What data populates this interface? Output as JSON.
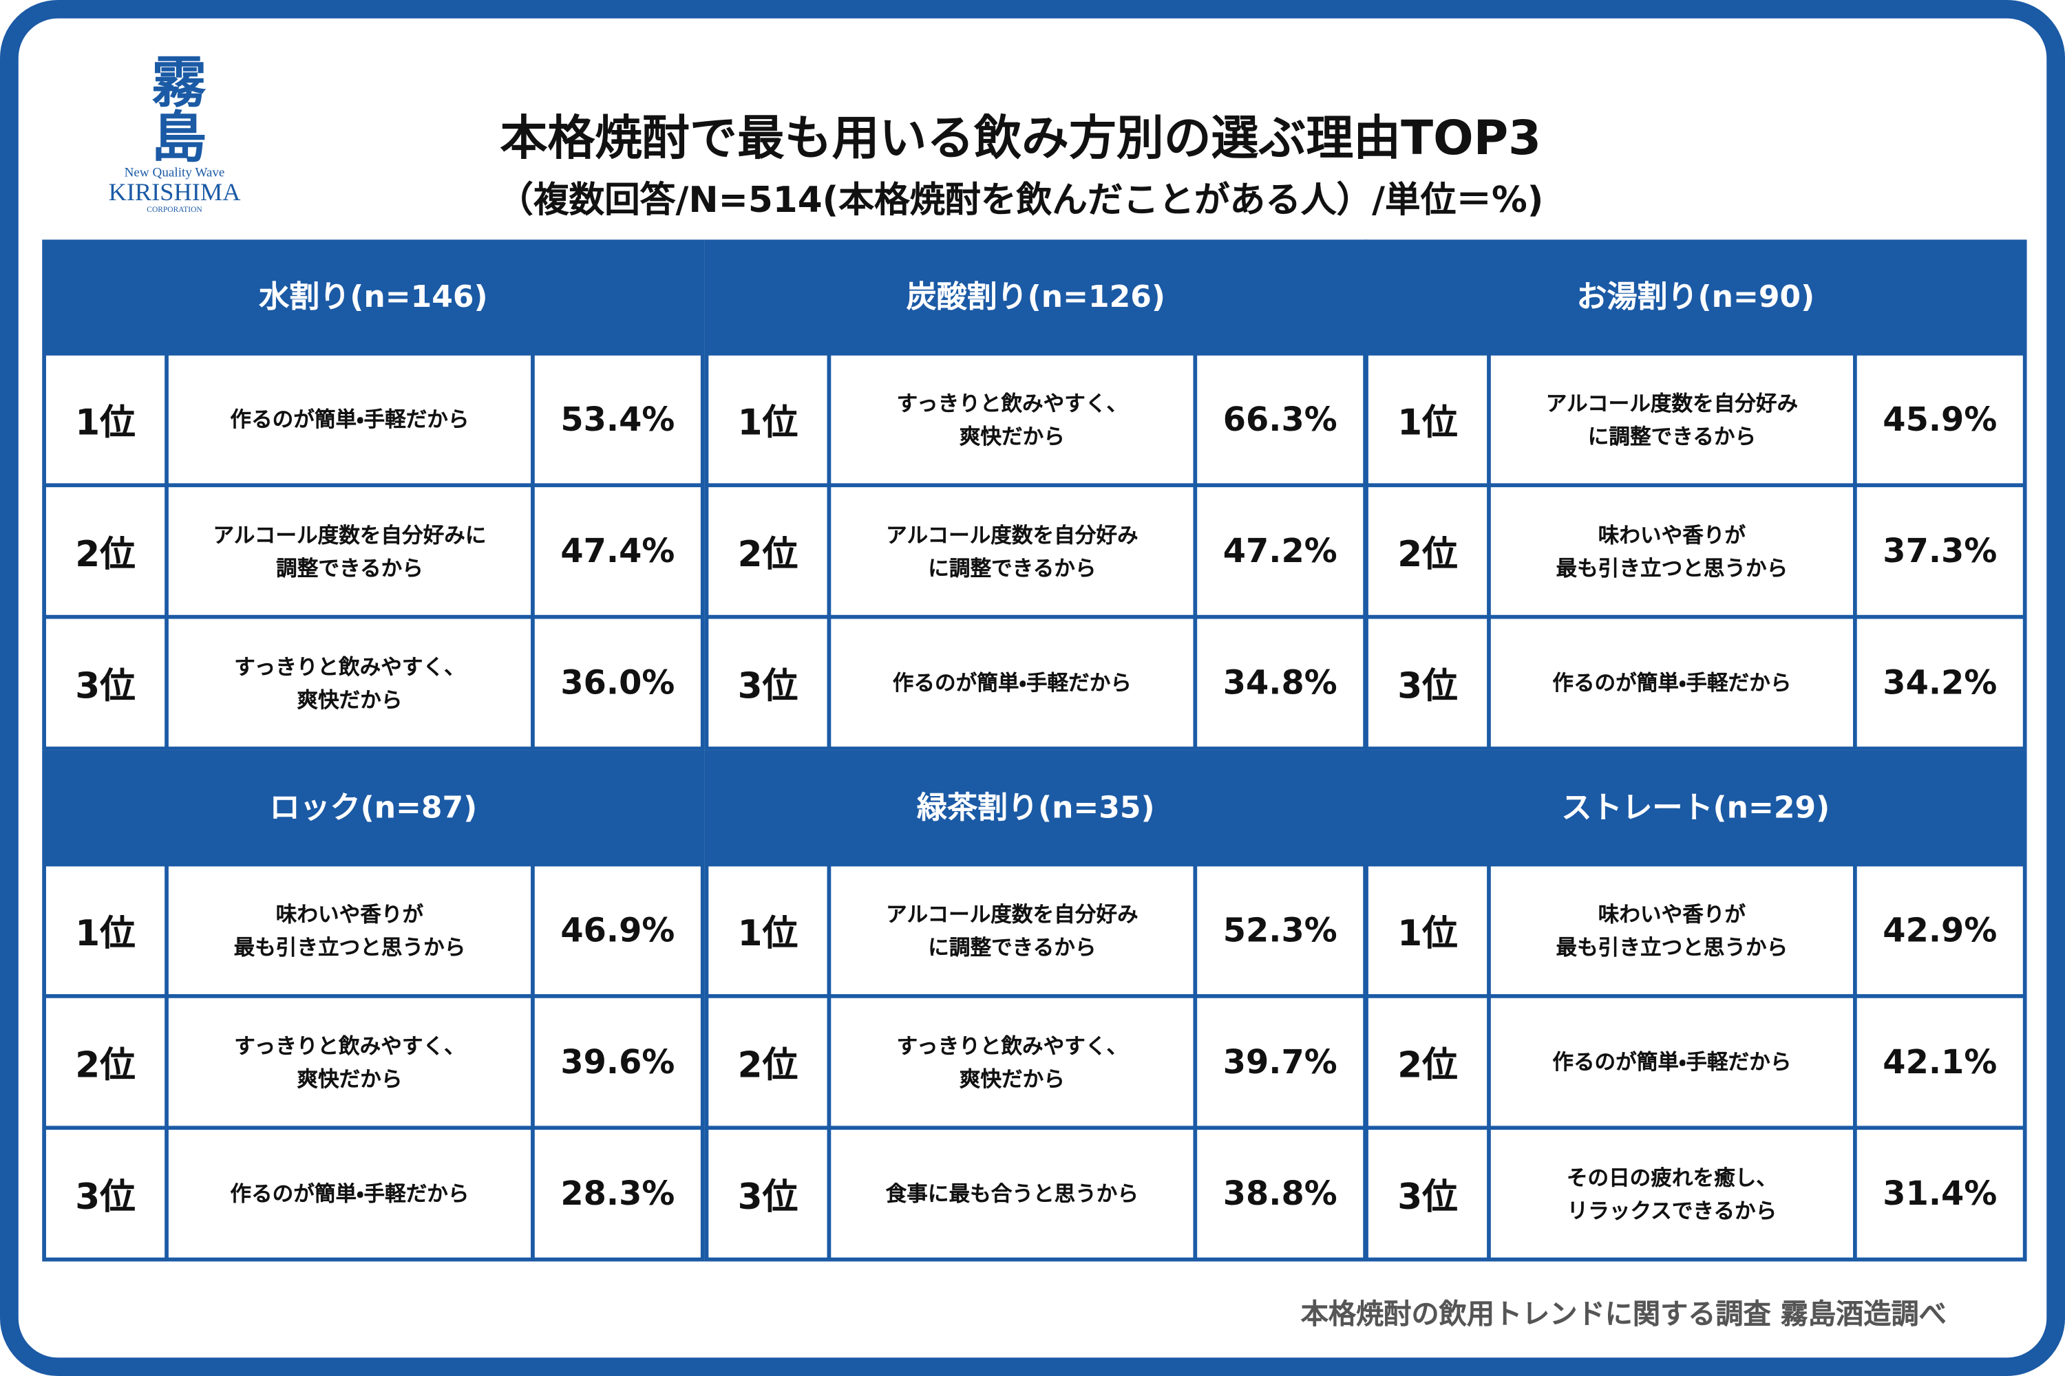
{
  "logo": {
    "mark": "霧島",
    "tagline": "New Quality Wave",
    "name": "KIRISHIMA",
    "corp": "CORPORATION"
  },
  "header": {
    "title": "本格焼酎で最も用いる飲み方別の選ぶ理由TOP3",
    "subtitle": "（複数回答/N=514(本格焼酎を飲んだことがある人）/単位＝%)"
  },
  "panels": [
    {
      "title": "水割り(n=146)",
      "rows": [
        [
          "1位",
          "作るのが簡単・手軽だから",
          "53.4%"
        ],
        [
          "2位",
          "アルコール度数を自分好みに\n調整できるから",
          "47.4%"
        ],
        [
          "3位",
          "すっきりと飲みやすく、\n爽快だから",
          "36.0%"
        ]
      ]
    },
    {
      "title": "炭酸割り(n=126)",
      "rows": [
        [
          "1位",
          "すっきりと飲みやすく、\n爽快だから",
          "66.3%"
        ],
        [
          "2位",
          "アルコール度数を自分好み\nに調整できるから",
          "47.2%"
        ],
        [
          "3位",
          "作るのが簡単・手軽だから",
          "34.8%"
        ]
      ]
    },
    {
      "title": "お湯割り(n=90)",
      "rows": [
        [
          "1位",
          "アルコール度数を自分好み\nに調整できるから",
          "45.9%"
        ],
        [
          "2位",
          "味わいや香りが\n最も引き立つと思うから",
          "37.3%"
        ],
        [
          "3位",
          "作るのが簡単・手軽だから",
          "34.2%"
        ]
      ]
    },
    {
      "title": "ロック(n=87)",
      "rows": [
        [
          "1位",
          "味わいや香りが\n最も引き立つと思うから",
          "46.9%"
        ],
        [
          "2位",
          "すっきりと飲みやすく、\n爽快だから",
          "39.6%"
        ],
        [
          "3位",
          "作るのが簡単・手軽だから",
          "28.3%"
        ]
      ]
    },
    {
      "title": "緑茶割り(n=35)",
      "rows": [
        [
          "1位",
          "アルコール度数を自分好み\nに調整できるから",
          "52.3%"
        ],
        [
          "2位",
          "すっきりと飲みやすく、\n爽快だから",
          "39.7%"
        ],
        [
          "3位",
          "食事に最も合うと思うから",
          "38.8%"
        ]
      ]
    },
    {
      "title": "ストレート(n=29)",
      "rows": [
        [
          "1位",
          "味わいや香りが\n最も引き立つと思うから",
          "42.9%"
        ],
        [
          "2位",
          "作るのが簡単・手軽だから",
          "42.1%"
        ],
        [
          "3位",
          "その日の疲れを癒し、\nリラックスできるから",
          "31.4%"
        ]
      ]
    }
  ],
  "footer": "本格焼酎の飲用トレンドに関する調査 霧島酒造調べ"
}
